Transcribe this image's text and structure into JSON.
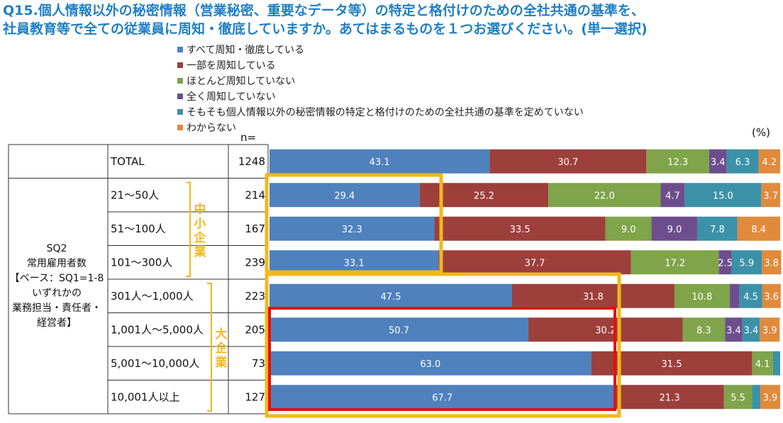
{
  "title": {
    "line1": "Q15.個人情報以外の秘密情報（営業秘密、重要なデータ等）の特定と格付けのための全社共通の基準を、",
    "line2": "社員教育等で全ての従業員に周知・徹底していますか。あてはまるものを１つお選びください。(単一選択)"
  },
  "unit_label": "(%)",
  "n_label": "n=",
  "colors": {
    "s1": "#4f81bd",
    "s2": "#9d3f3b",
    "s3": "#7fa44a",
    "s4": "#6d4d8e",
    "s5": "#3b91a8",
    "s6": "#e08a3c",
    "frame_orange": "#f2b81c",
    "frame_red": "#e61010",
    "side_label": "#f2b81c"
  },
  "side_groups": {
    "base_label": "SQ2\n常用雇用者数\n【ベース：SQ1=1-8\nいずれかの\n業務担当・責任者・\n経営者】",
    "small": "中小企業",
    "large": "大企業"
  },
  "chart_data": {
    "type": "bar",
    "orientation": "horizontal",
    "stacked": true,
    "xlim": [
      0,
      100
    ],
    "legend_position": "top",
    "categories": [
      "TOTAL",
      "21～50人",
      "51～100人",
      "101～300人",
      "301人～1,000人",
      "1,001人～5,000人",
      "5,001～10,000人",
      "10,001人以上"
    ],
    "n": [
      1248,
      214,
      167,
      239,
      223,
      205,
      73,
      127
    ],
    "series": [
      {
        "name": "すべて周知・徹底している",
        "values": [
          43.1,
          29.4,
          32.3,
          33.1,
          47.5,
          50.7,
          63.0,
          67.7
        ]
      },
      {
        "name": "一部を周知している",
        "values": [
          30.7,
          25.2,
          33.5,
          37.7,
          31.8,
          30.2,
          31.5,
          21.3
        ]
      },
      {
        "name": "ほとんど周知していない",
        "values": [
          12.3,
          22.0,
          9.0,
          17.2,
          10.8,
          8.3,
          4.1,
          5.5
        ]
      },
      {
        "name": "全く周知していない",
        "values": [
          3.4,
          4.7,
          9.0,
          2.5,
          1.9,
          3.4,
          0.0,
          0.0
        ]
      },
      {
        "name": "そもそも個人情報以外の秘密情報の特定と格付けのための全社共通の基準を定めていない",
        "values": [
          6.3,
          15.0,
          7.8,
          5.9,
          4.5,
          3.4,
          1.4,
          1.6
        ]
      },
      {
        "name": "わからない",
        "values": [
          4.2,
          3.7,
          8.4,
          3.8,
          3.6,
          3.9,
          0.0,
          3.9
        ]
      }
    ],
    "data_labels": [
      [
        "43.1",
        "30.7",
        "12.3",
        "3.4",
        "6.3",
        "4.2"
      ],
      [
        "29.4",
        "25.2",
        "22.0",
        "4.7",
        "15.0",
        "3.7"
      ],
      [
        "32.3",
        "33.5",
        "9.0",
        "9.0",
        "7.8",
        "8.4"
      ],
      [
        "33.1",
        "37.7",
        "17.2",
        "2.5",
        "5.9",
        "3.8"
      ],
      [
        "47.5",
        "31.8",
        "10.8",
        "",
        "4.5",
        "3.6"
      ],
      [
        "50.7",
        "30.2",
        "8.3",
        "3.4",
        "3.4",
        "3.9"
      ],
      [
        "63.0",
        "31.5",
        "4.1",
        "",
        "",
        ""
      ],
      [
        "67.7",
        "21.3",
        "5.5",
        "",
        "",
        "3.9"
      ]
    ]
  }
}
